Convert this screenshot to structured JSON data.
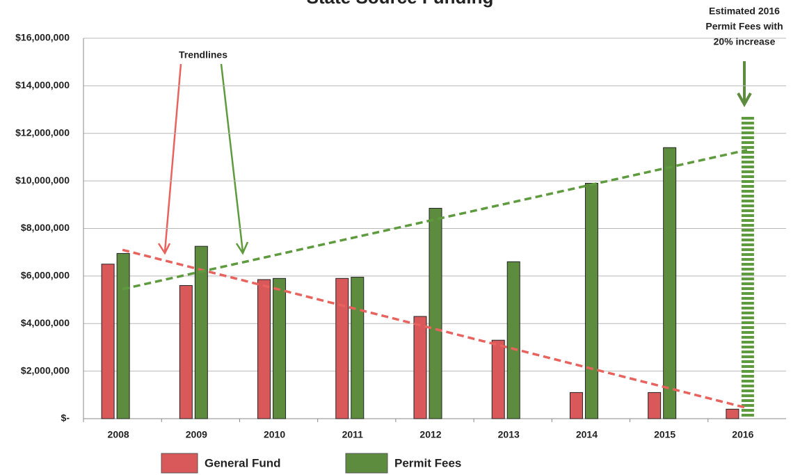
{
  "chart_data": {
    "type": "bar",
    "title": "State Source Funding",
    "categories": [
      "2008",
      "2009",
      "2010",
      "2011",
      "2012",
      "2013",
      "2014",
      "2015",
      "2016"
    ],
    "series": [
      {
        "name": "General Fund",
        "color": "#d9585a",
        "values": [
          6500000,
          5600000,
          5850000,
          5900000,
          4300000,
          3300000,
          1100000,
          1100000,
          400000
        ]
      },
      {
        "name": "Permit Fees",
        "color": "#5e8c3e",
        "values": [
          6950000,
          7250000,
          5900000,
          5950000,
          8850000,
          6600000,
          9900000,
          11400000,
          12700000
        ],
        "hatched": [
          8
        ]
      }
    ],
    "trendlines": [
      {
        "color": "#e8635e",
        "values": [
          7100000,
          450000
        ]
      },
      {
        "color": "#5e9a3e",
        "values": [
          5450000,
          11300000
        ]
      }
    ],
    "ylim": [
      0,
      16000000
    ],
    "yticks": [
      {
        "value": 0,
        "label": "$-"
      },
      {
        "value": 2000000,
        "label": "$2,000,000"
      },
      {
        "value": 4000000,
        "label": "$4,000,000"
      },
      {
        "value": 6000000,
        "label": "$6,000,000"
      },
      {
        "value": 8000000,
        "label": "$8,000,000"
      },
      {
        "value": 10000000,
        "label": "$10,000,000"
      },
      {
        "value": 12000000,
        "label": "$12,000,000"
      },
      {
        "value": 14000000,
        "label": "$14,000,000"
      },
      {
        "value": 16000000,
        "label": "$16,000,000"
      }
    ],
    "grid": true,
    "annotations": [
      {
        "lines": [
          "Trendlines"
        ]
      },
      {
        "lines": [
          "Estimated  2016",
          "Permit Fees with",
          "20% increase"
        ]
      }
    ]
  }
}
